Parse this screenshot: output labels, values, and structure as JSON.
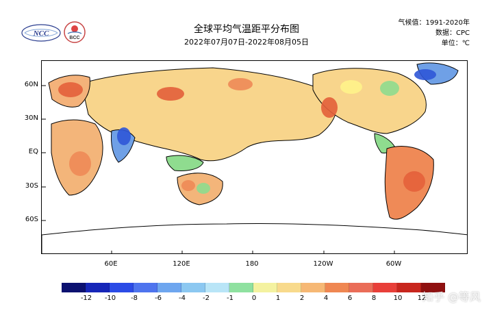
{
  "header": {
    "title": "全球平均气温距平分布图",
    "subtitle": "2022年07月07日-2022年08月05日",
    "climatology": "气候值：1991-2020年",
    "source": "数据：CPC",
    "unit": "单位：℃"
  },
  "logos": {
    "ncc_text": "NCC",
    "bcc_text": "BCC"
  },
  "map": {
    "lat_labels": [
      "60N",
      "30N",
      "EQ",
      "30S",
      "60S"
    ],
    "lon_labels": [
      "60E",
      "120E",
      "180",
      "120W",
      "60W"
    ],
    "colors": {
      "warm": "#f3a261",
      "hot": "#e4603b",
      "neutral": "#fff38a",
      "cool": "#8fdc8f",
      "cold": "#6fa0e6",
      "very_cold": "#2f57d8"
    }
  },
  "legend": {
    "ticks": [
      "-12",
      "-10",
      "-8",
      "-6",
      "-4",
      "-2",
      "-1",
      "0",
      "1",
      "2",
      "4",
      "6",
      "8",
      "10",
      "12"
    ],
    "colors": [
      "#0c1170",
      "#1626b8",
      "#2b4be6",
      "#4e74ee",
      "#6ea6ef",
      "#8cc8f1",
      "#b9e5f7",
      "#8fe1a0",
      "#f4f2a0",
      "#f8da8c",
      "#f6b875",
      "#ef8752",
      "#ea6d58",
      "#e83f39",
      "#c8261d",
      "#8f1010"
    ]
  },
  "watermark": "知乎 @等风"
}
